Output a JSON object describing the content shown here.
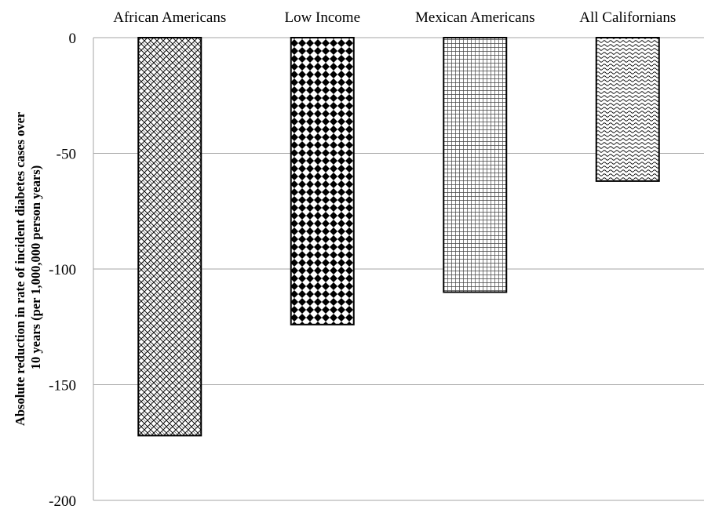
{
  "chart_data": {
    "type": "bar",
    "categories": [
      "African Americans",
      "Low Income",
      "Mexican Americans",
      "All Californians"
    ],
    "values": [
      -172,
      -124,
      -110,
      -62
    ],
    "title": "",
    "xlabel": "",
    "ylabel_lines": [
      "Absolute reduction  in rate of incident  diabetes cases over",
      "10 years (per 1,000,000 person years)"
    ],
    "ylim": [
      -200,
      0
    ],
    "yticks": [
      0,
      -50,
      -100,
      -150,
      -200
    ],
    "ytick_labels": [
      "0",
      "-50",
      "-100",
      "-150",
      "-200"
    ],
    "grid": true,
    "category_axis_position": "top",
    "bar_patterns": [
      "weave",
      "diamond-checker",
      "fine-grid",
      "wave"
    ],
    "colors": {
      "bar_outline": "#000000",
      "gridline": "#a6a6a6",
      "pattern_dark": "#000000",
      "pattern_light": "#ffffff"
    }
  }
}
